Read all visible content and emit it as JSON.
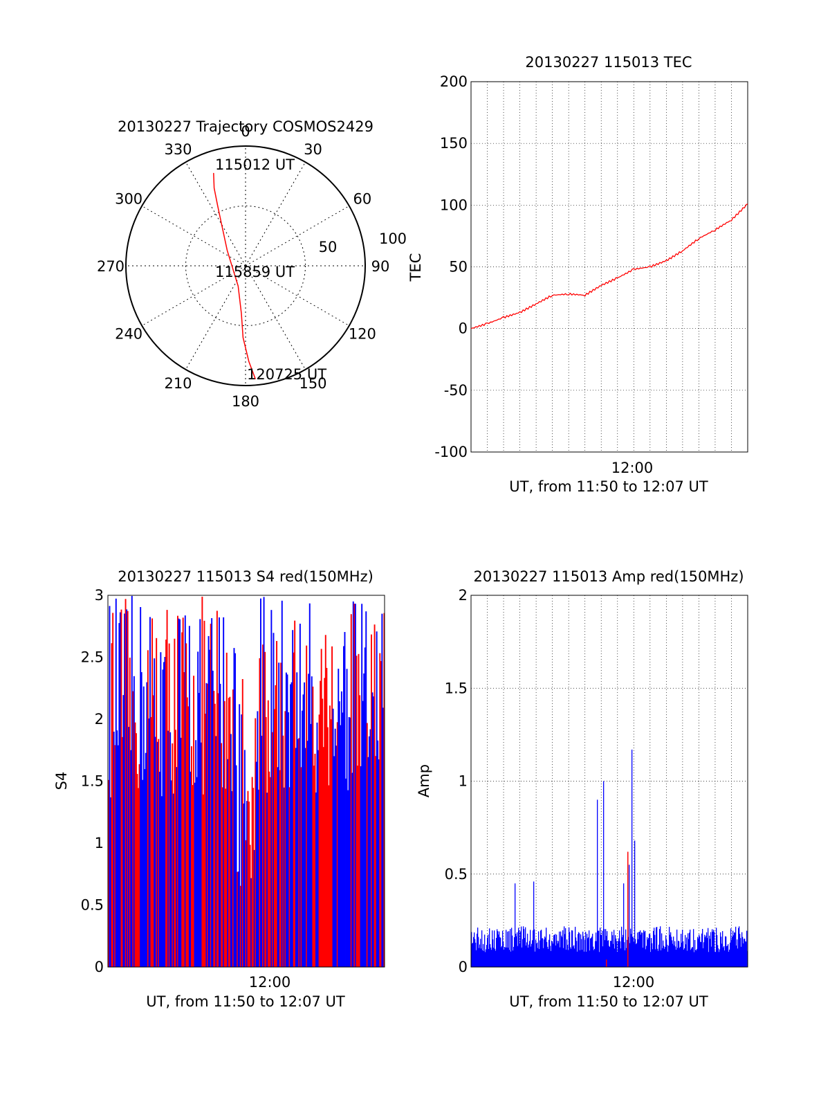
{
  "chart_data": [
    {
      "type": "polar",
      "title": "20130227 Trajectory COSMOS2429",
      "azimuth_labels": [
        "0",
        "30",
        "60",
        "90",
        "120",
        "150",
        "180",
        "210",
        "240",
        "270",
        "300",
        "330"
      ],
      "radial_labels": [
        "50",
        "100"
      ],
      "annotations": [
        "115012 UT",
        "115859 UT",
        "120725 UT"
      ],
      "trajectory": [
        {
          "az": 341,
          "elev_r": 82
        },
        {
          "az": 338,
          "elev_r": 70
        },
        {
          "az": 335,
          "elev_r": 55
        },
        {
          "az": 330,
          "elev_r": 40
        },
        {
          "az": 310,
          "elev_r": 20
        },
        {
          "az": 200,
          "elev_r": 18
        },
        {
          "az": 185,
          "elev_r": 40
        },
        {
          "az": 182,
          "elev_r": 60
        },
        {
          "az": 178,
          "elev_r": 80
        },
        {
          "az": 175,
          "elev_r": 95
        }
      ],
      "color": "#ff0000"
    },
    {
      "type": "line",
      "title": "20130227 115013 TEC",
      "xlabel": "UT, from 11:50 to 12:07 UT",
      "ylabel": "TEC",
      "x_tick_labels": [
        "12:00"
      ],
      "y_tick_labels": [
        "200",
        "150",
        "100",
        "50",
        "0",
        "-50",
        "-100"
      ],
      "ylim": [
        -100,
        200
      ],
      "grid": true,
      "series": [
        {
          "color": "#ff0000",
          "x": [
            0,
            1,
            2,
            3,
            4,
            5,
            6,
            7,
            8,
            9,
            10,
            11,
            12,
            13,
            14,
            15,
            16,
            17
          ],
          "y": [
            0,
            4,
            9,
            13,
            20,
            27,
            28,
            27,
            35,
            41,
            48,
            50,
            55,
            63,
            73,
            80,
            88,
            101
          ]
        }
      ]
    },
    {
      "type": "bar",
      "title": "20130227 115013 S4 red(150MHz)",
      "ylabel": "S4",
      "xlabel": "UT, from 11:50 to 12:07 UT",
      "x_tick_labels": [
        "12:00"
      ],
      "y_tick_labels": [
        "3",
        "2.5",
        "2",
        "1.5",
        "1",
        "0.5",
        "0"
      ],
      "ylim": [
        0,
        3
      ],
      "series_colors": [
        "#0000ff",
        "#ff0000"
      ]
    },
    {
      "type": "bar",
      "title": "20130227 115013 Amp red(150MHz)",
      "ylabel": "Amp",
      "xlabel": "UT, from 11:50 to 12:07 UT",
      "x_tick_labels": [
        "12:00"
      ],
      "y_tick_labels": [
        "2",
        "1.5",
        "1",
        "0.5",
        "0"
      ],
      "ylim": [
        0,
        2
      ],
      "grid": true,
      "series_colors": [
        "#0000ff",
        "#ff0000"
      ]
    }
  ]
}
